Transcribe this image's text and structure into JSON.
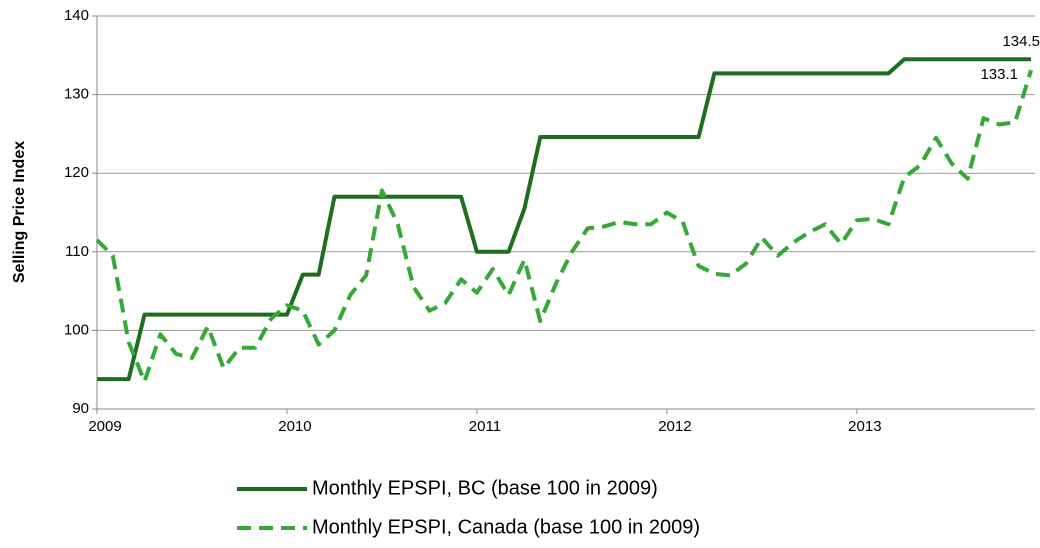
{
  "chart_data": {
    "type": "line",
    "y_label": "Selling Price Index",
    "categories": [
      "2009",
      null,
      null,
      null,
      null,
      null,
      null,
      null,
      null,
      null,
      null,
      null,
      "2010",
      null,
      null,
      null,
      null,
      null,
      null,
      null,
      null,
      null,
      null,
      null,
      "2011",
      null,
      null,
      null,
      null,
      null,
      null,
      null,
      null,
      null,
      null,
      null,
      "2012",
      null,
      null,
      null,
      null,
      null,
      null,
      null,
      null,
      null,
      null,
      null,
      "2013",
      null,
      null,
      null,
      null,
      null,
      null,
      null,
      null,
      null,
      null,
      null
    ],
    "series": [
      {
        "name": "Monthly EPSPI, BC (base 100 in 2009)",
        "color": "#1f6e1f",
        "dashed": false,
        "values": [
          93.8,
          93.8,
          93.8,
          102,
          102,
          102,
          102,
          102,
          102,
          102,
          102,
          102,
          102,
          107.1,
          107.1,
          117,
          117,
          117,
          117,
          117,
          117,
          117,
          117,
          117,
          110,
          110,
          110,
          115.5,
          124.6,
          124.6,
          124.6,
          124.6,
          124.6,
          124.6,
          124.6,
          124.6,
          124.6,
          124.6,
          124.6,
          132.7,
          132.7,
          132.7,
          132.7,
          132.7,
          132.7,
          132.7,
          132.7,
          132.7,
          132.7,
          132.7,
          132.7,
          134.5,
          134.5,
          134.5,
          134.5,
          134.5,
          134.5,
          134.5,
          134.5,
          134.5
        ]
      },
      {
        "name": "Monthly EPSPI, Canada (base 100 in 2009)",
        "color": "#36a836",
        "dashed": true,
        "values": [
          111.5,
          109.5,
          98.5,
          93.5,
          99.5,
          97,
          96.5,
          100.5,
          95.2,
          97.8,
          97.8,
          101.5,
          103.2,
          102.5,
          98.2,
          100,
          104.5,
          107,
          117.8,
          113.5,
          105.5,
          102.5,
          103.5,
          106.5,
          104.8,
          107.8,
          104.5,
          109,
          101.2,
          106,
          110,
          113,
          113.2,
          113.8,
          113.5,
          113.5,
          115,
          113.8,
          108.2,
          107.2,
          107,
          108.5,
          111.8,
          109.5,
          111.2,
          112.5,
          113.5,
          111,
          114,
          114.2,
          113.5,
          119.5,
          121,
          124.5,
          121.2,
          119.3,
          127,
          126.2,
          126.5,
          133.1
        ]
      }
    ],
    "end_labels": true,
    "ylim": [
      90,
      140
    ],
    "yticks": [
      90,
      100,
      110,
      120,
      130,
      140
    ],
    "grid": true
  }
}
